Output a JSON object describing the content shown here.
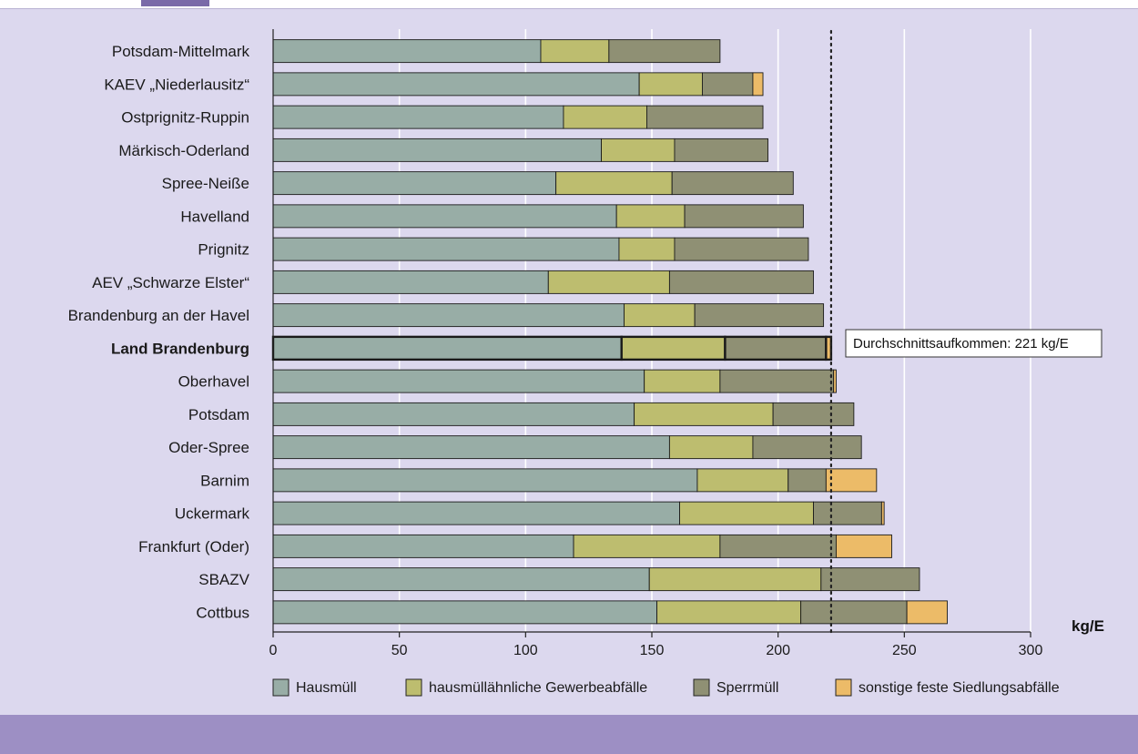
{
  "colors": {
    "panel_bg": "#dcd8ee",
    "bottom_band": "#9d8fc4",
    "hausmuell": "#98ada6",
    "gewerbe": "#bdbd6f",
    "sperrmuell": "#8f9074",
    "sonstige": "#ecbb68",
    "grid": "#ffffff"
  },
  "chart_data": {
    "type": "bar",
    "orientation": "horizontal",
    "stacked": true,
    "categories": [
      "Potsdam-Mittelmark",
      "KAEV „Niederlausitz“",
      "Ostprignitz-Ruppin",
      "Märkisch-Oderland",
      "Spree-Neiße",
      "Havelland",
      "Prignitz",
      "AEV „Schwarze Elster“",
      "Brandenburg an der Havel",
      "Land Brandenburg",
      "Oberhavel",
      "Potsdam",
      "Oder-Spree",
      "Barnim",
      "Uckermark",
      "Frankfurt (Oder)",
      "SBAZV",
      "Cottbus"
    ],
    "highlight_category": "Land Brandenburg",
    "series": [
      {
        "name": "Hausmüll",
        "color": "#98ada6",
        "values": [
          106,
          145,
          115,
          130,
          112,
          136,
          137,
          109,
          139,
          138,
          147,
          143,
          157,
          168,
          161,
          119,
          149,
          152
        ]
      },
      {
        "name": "hausmüllähnliche Gewerbeabfälle",
        "color": "#bdbd6f",
        "values": [
          27,
          25,
          33,
          29,
          46,
          27,
          22,
          48,
          28,
          41,
          30,
          55,
          33,
          36,
          53,
          58,
          68,
          57
        ]
      },
      {
        "name": "Sperrmüll",
        "color": "#8f9074",
        "values": [
          44,
          20,
          46,
          37,
          48,
          47,
          53,
          57,
          51,
          40,
          45,
          32,
          43,
          15,
          27,
          46,
          39,
          42
        ]
      },
      {
        "name": "sonstige feste Siedlungsabfälle",
        "color": "#ecbb68",
        "values": [
          0,
          4,
          0,
          0,
          0,
          0,
          0,
          0,
          0,
          2,
          1,
          0,
          0,
          20,
          1,
          22,
          0,
          16
        ]
      }
    ],
    "xlim": [
      0,
      300
    ],
    "xticks": [
      0,
      50,
      100,
      150,
      200,
      250,
      300
    ],
    "xlabel": "kg/E",
    "reference_line": {
      "value": 221,
      "label": "Durchschnittsaufkommen: 221 kg/E",
      "style": "dotted"
    },
    "grid": true,
    "legend_position": "bottom"
  }
}
